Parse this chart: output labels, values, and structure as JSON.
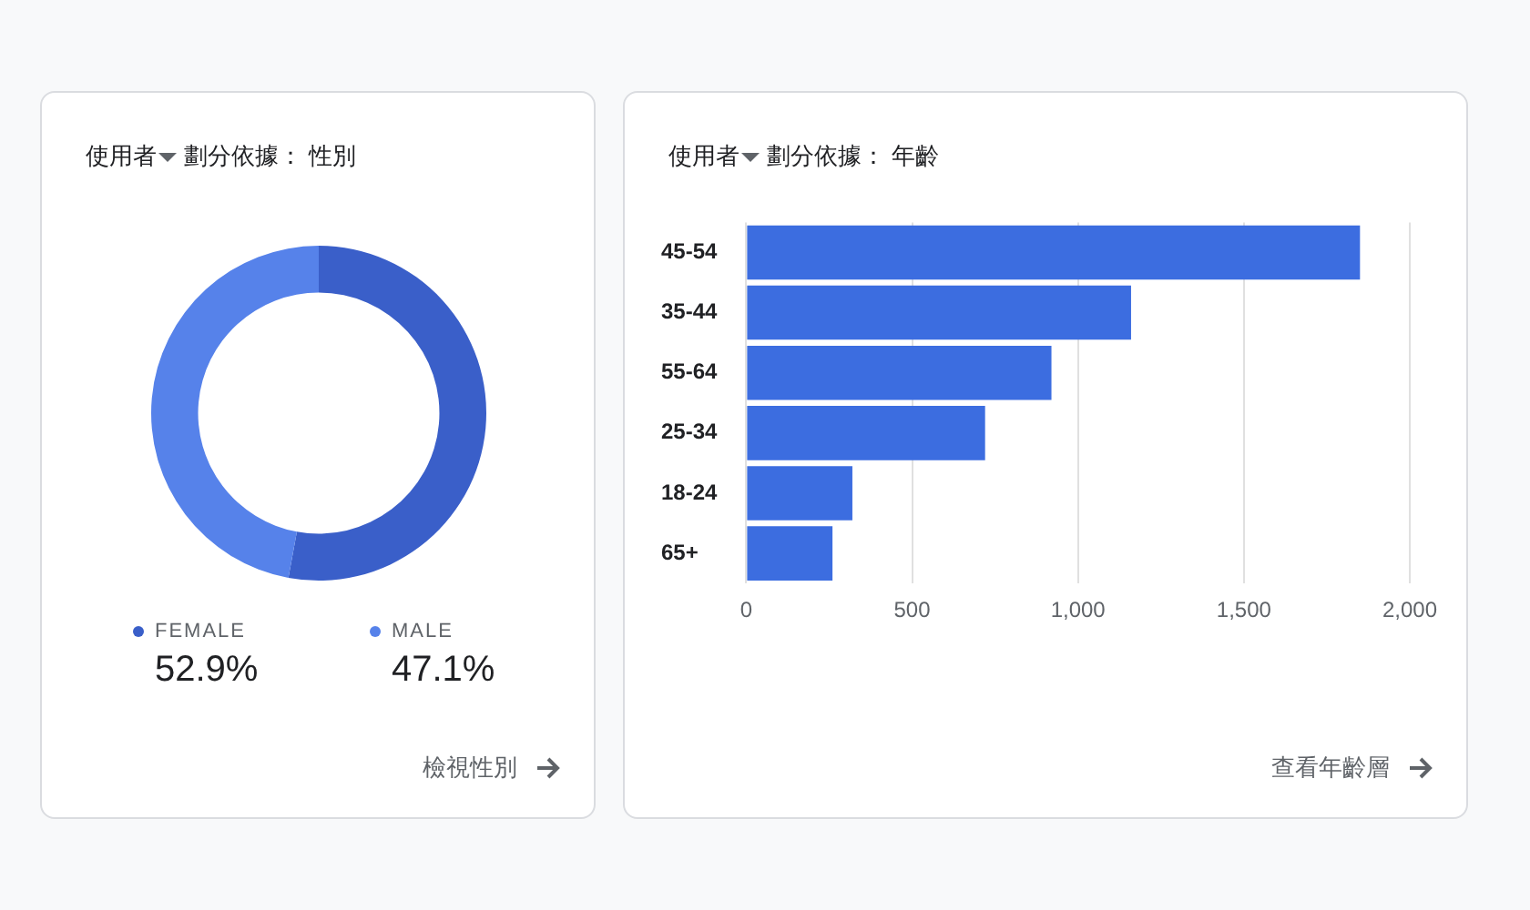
{
  "chart_data": [
    {
      "type": "donut",
      "title": "使用者",
      "subtitle": "劃分依據： 性別",
      "categories": [
        "FEMALE",
        "MALE"
      ],
      "values": [
        52.9,
        47.1
      ],
      "colors": [
        "#3a5fc9",
        "#5682ea"
      ],
      "value_labels": [
        "52.9%",
        "47.1%"
      ],
      "legend": "bottom",
      "annotations": [
        "檢視性別"
      ]
    },
    {
      "type": "bar",
      "orientation": "horizontal",
      "title": "使用者",
      "subtitle": "劃分依據： 年齡",
      "categories": [
        "45-54",
        "35-44",
        "55-64",
        "25-34",
        "18-24",
        "65+"
      ],
      "series": [
        {
          "color": "#3c6de0",
          "values": [
            1850,
            1160,
            920,
            720,
            320,
            260
          ]
        }
      ],
      "xlim": [
        0,
        2000
      ],
      "xticks": [
        0,
        500,
        {
          "value": 1000,
          "label": "1,000"
        },
        {
          "value": 1500,
          "label": "1,500"
        },
        {
          "value": 2000,
          "label": "2,000"
        }
      ],
      "grid": "x",
      "annotations": [
        "查看年齡層"
      ]
    }
  ]
}
